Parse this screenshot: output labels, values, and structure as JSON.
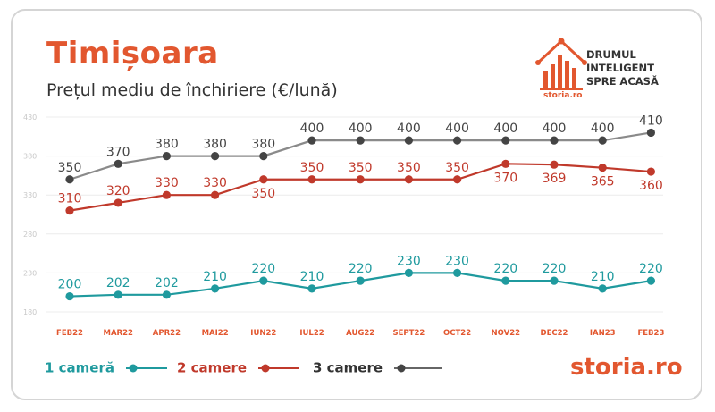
{
  "header": {
    "title": "Timișoara",
    "subtitle": "Prețul mediu de închiriere (€/lună)"
  },
  "badge": {
    "lines": [
      "DRUMUL",
      "INTELIGENT",
      "SPRE ACASĂ"
    ],
    "brand_small": "storia.ro",
    "icon": "house-bars-icon"
  },
  "brand": {
    "text": "storia.ro"
  },
  "colors": {
    "accent": "#e2572f",
    "series_1": "#1f9a9e",
    "series_2": "#c0392b",
    "series_3": "#444444"
  },
  "chart_data": {
    "type": "line",
    "title": "Prețul mediu de închiriere (€/lună)",
    "xlabel": "",
    "ylabel": "",
    "categories": [
      "FEB22",
      "MAR22",
      "APR22",
      "MAI22",
      "IUN22",
      "IUL22",
      "AUG22",
      "SEPT22",
      "OCT22",
      "NOV22",
      "DEC22",
      "IAN23",
      "FEB23"
    ],
    "y_ticks": [
      "430",
      "380",
      "330",
      "280",
      "230",
      "180"
    ],
    "ylim": [
      180,
      430
    ],
    "grid": true,
    "legend": "bottom-left",
    "series": [
      {
        "name": "1 cameră",
        "color": "#1f9a9e",
        "values": [
          200,
          202,
          202,
          210,
          220,
          210,
          220,
          230,
          230,
          220,
          220,
          210,
          220
        ]
      },
      {
        "name": "2 camere",
        "color": "#c0392b",
        "values": [
          310,
          320,
          330,
          330,
          350,
          350,
          350,
          350,
          350,
          370,
          369,
          365,
          360
        ]
      },
      {
        "name": "3 camere",
        "color": "#444444",
        "values": [
          350,
          370,
          380,
          380,
          380,
          400,
          400,
          400,
          400,
          400,
          400,
          400,
          410
        ]
      }
    ]
  }
}
